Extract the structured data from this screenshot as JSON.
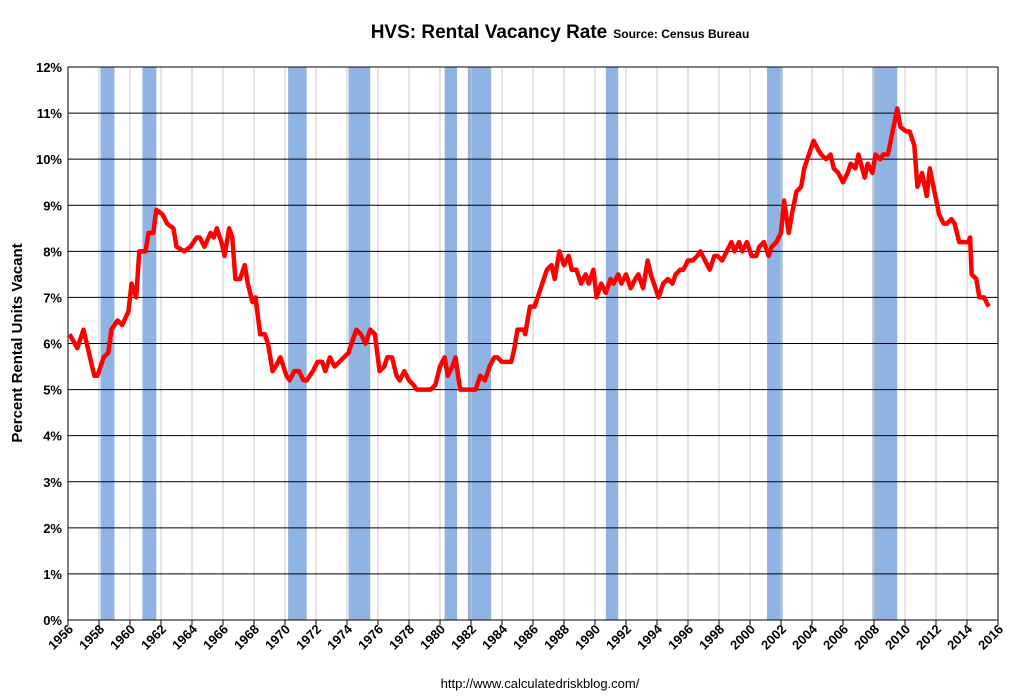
{
  "chart_data": {
    "type": "line",
    "title": "HVS: Rental Vacancy Rate",
    "subtitle": "Source: Census Bureau",
    "ylabel": "Percent Rental Units Vacant",
    "source_url": "http://www.calculatedriskblog.com/",
    "xlim": [
      1956,
      2016
    ],
    "xticks": [
      1956,
      1958,
      1960,
      1962,
      1964,
      1966,
      1968,
      1970,
      1972,
      1974,
      1976,
      1978,
      1980,
      1982,
      1984,
      1986,
      1988,
      1990,
      1992,
      1994,
      1996,
      1998,
      2000,
      2002,
      2004,
      2006,
      2008,
      2010,
      2012,
      2014,
      2016
    ],
    "ylim": [
      0,
      12
    ],
    "yticks": [
      {
        "value": 0,
        "label": "0%"
      },
      {
        "value": 1,
        "label": "1%"
      },
      {
        "value": 2,
        "label": "2%"
      },
      {
        "value": 3,
        "label": "3%"
      },
      {
        "value": 4,
        "label": "4%"
      },
      {
        "value": 5,
        "label": "5%"
      },
      {
        "value": 6,
        "label": "6%"
      },
      {
        "value": 7,
        "label": "7%"
      },
      {
        "value": 8,
        "label": "8%"
      },
      {
        "value": 9,
        "label": "9%"
      },
      {
        "value": 10,
        "label": "10%"
      },
      {
        "value": 11,
        "label": "11%"
      },
      {
        "value": 12,
        "label": "12%"
      }
    ],
    "grid": true,
    "recession_color": "#8fb4e3",
    "recessions": [
      [
        1958.1,
        1959.0
      ],
      [
        1960.8,
        1961.7
      ],
      [
        1970.2,
        1971.4
      ],
      [
        1974.1,
        1975.5
      ],
      [
        1980.3,
        1981.1
      ],
      [
        1981.8,
        1983.3
      ],
      [
        1990.7,
        1991.5
      ],
      [
        2001.1,
        2002.1
      ],
      [
        2007.9,
        2009.5
      ]
    ],
    "x": [
      1956.1,
      1956.6,
      1957.0,
      1957.7,
      1957.9,
      1958.3,
      1958.6,
      1958.8,
      1959.2,
      1959.5,
      1959.9,
      1960.1,
      1960.4,
      1960.6,
      1961.0,
      1961.2,
      1961.5,
      1961.7,
      1962.1,
      1962.4,
      1962.8,
      1963.0,
      1963.5,
      1963.9,
      1964.3,
      1964.5,
      1964.8,
      1965.2,
      1965.4,
      1965.6,
      1965.9,
      1966.1,
      1966.4,
      1966.6,
      1966.8,
      1967.1,
      1967.4,
      1967.6,
      1967.9,
      1968.1,
      1968.4,
      1968.7,
      1968.9,
      1969.2,
      1969.4,
      1969.7,
      1970.1,
      1970.3,
      1970.6,
      1970.9,
      1971.2,
      1971.4,
      1971.8,
      1972.1,
      1972.4,
      1972.6,
      1972.9,
      1973.2,
      1973.5,
      1973.8,
      1974.1,
      1974.4,
      1974.6,
      1974.9,
      1975.2,
      1975.5,
      1975.8,
      1976.1,
      1976.4,
      1976.6,
      1976.9,
      1977.2,
      1977.4,
      1977.7,
      1978.0,
      1978.3,
      1978.5,
      1978.8,
      1979.1,
      1979.4,
      1979.7,
      1980.0,
      1980.3,
      1980.5,
      1980.8,
      1981.0,
      1981.3,
      1981.6,
      1981.9,
      1982.3,
      1982.6,
      1982.9,
      1983.2,
      1983.5,
      1983.7,
      1984.0,
      1984.3,
      1984.6,
      1984.8,
      1985.0,
      1985.4,
      1985.5,
      1985.8,
      1986.1,
      1986.3,
      1986.6,
      1986.9,
      1987.2,
      1987.4,
      1987.7,
      1988.0,
      1988.3,
      1988.5,
      1988.8,
      1989.1,
      1989.4,
      1989.6,
      1989.9,
      1990.1,
      1990.4,
      1990.7,
      1991.0,
      1991.2,
      1991.5,
      1991.7,
      1992.0,
      1992.3,
      1992.6,
      1992.8,
      1993.1,
      1993.4,
      1993.6,
      1993.9,
      1994.1,
      1994.4,
      1994.7,
      1995.0,
      1995.2,
      1995.5,
      1995.7,
      1996.0,
      1996.3,
      1996.6,
      1996.8,
      1997.1,
      1997.4,
      1997.7,
      1997.9,
      1998.2,
      1998.5,
      1998.8,
      1999.0,
      1999.3,
      1999.5,
      1999.8,
      2000.1,
      2000.4,
      2000.6,
      2000.9,
      2001.2,
      2001.4,
      2001.7,
      2002.0,
      2002.2,
      2002.5,
      2002.7,
      2003.0,
      2003.3,
      2003.5,
      2003.8,
      2004.1,
      2004.4,
      2004.6,
      2004.9,
      2005.2,
      2005.4,
      2005.7,
      2006.0,
      2006.3,
      2006.5,
      2006.8,
      2007.0,
      2007.4,
      2007.6,
      2007.9,
      2008.1,
      2008.4,
      2008.6,
      2008.9,
      2009.2,
      2009.5,
      2009.7,
      2010.1,
      2010.3,
      2010.6,
      2010.8,
      2011.1,
      2011.4,
      2011.6,
      2011.9,
      2012.2,
      2012.5,
      2012.7,
      2013.0,
      2013.2,
      2013.5,
      2013.8,
      2014.1,
      2014.2,
      2014.3,
      2014.6,
      2014.8,
      2015.1,
      2015.4
    ],
    "series": [
      {
        "name": "Rental Vacancy Rate",
        "color": "#ff0000",
        "values": [
          6.2,
          5.9,
          6.3,
          5.3,
          5.3,
          5.7,
          5.8,
          6.3,
          6.5,
          6.4,
          6.7,
          7.3,
          7.0,
          8.0,
          8.0,
          8.4,
          8.4,
          8.9,
          8.8,
          8.6,
          8.5,
          8.1,
          8.0,
          8.1,
          8.3,
          8.3,
          8.1,
          8.4,
          8.3,
          8.5,
          8.2,
          7.9,
          8.5,
          8.3,
          7.4,
          7.4,
          7.7,
          7.3,
          6.9,
          7.0,
          6.2,
          6.2,
          6.0,
          5.4,
          5.5,
          5.7,
          5.3,
          5.2,
          5.4,
          5.4,
          5.2,
          5.2,
          5.4,
          5.6,
          5.6,
          5.4,
          5.7,
          5.5,
          5.6,
          5.7,
          5.8,
          6.1,
          6.3,
          6.2,
          6.0,
          6.3,
          6.2,
          5.4,
          5.5,
          5.7,
          5.7,
          5.3,
          5.2,
          5.4,
          5.2,
          5.1,
          5.0,
          5.0,
          5.0,
          5.0,
          5.1,
          5.5,
          5.7,
          5.3,
          5.5,
          5.7,
          5.0,
          5.0,
          5.0,
          5.0,
          5.3,
          5.2,
          5.5,
          5.7,
          5.7,
          5.6,
          5.6,
          5.6,
          5.9,
          6.3,
          6.3,
          6.2,
          6.8,
          6.8,
          7.0,
          7.3,
          7.6,
          7.7,
          7.4,
          8.0,
          7.7,
          7.9,
          7.6,
          7.6,
          7.3,
          7.5,
          7.3,
          7.6,
          7.0,
          7.3,
          7.1,
          7.4,
          7.3,
          7.5,
          7.3,
          7.5,
          7.2,
          7.4,
          7.5,
          7.2,
          7.8,
          7.5,
          7.2,
          7.0,
          7.3,
          7.4,
          7.3,
          7.5,
          7.6,
          7.6,
          7.8,
          7.8,
          7.9,
          8.0,
          7.8,
          7.6,
          7.9,
          7.9,
          7.8,
          8.0,
          8.2,
          8.0,
          8.2,
          8.0,
          8.2,
          7.9,
          7.9,
          8.1,
          8.2,
          7.9,
          8.1,
          8.2,
          8.4,
          9.1,
          8.4,
          8.8,
          9.3,
          9.4,
          9.8,
          10.1,
          10.4,
          10.2,
          10.1,
          10.0,
          10.1,
          9.8,
          9.7,
          9.5,
          9.7,
          9.9,
          9.8,
          10.1,
          9.6,
          9.9,
          9.7,
          10.1,
          10.0,
          10.1,
          10.1,
          10.6,
          11.1,
          10.7,
          10.6,
          10.6,
          10.3,
          9.4,
          9.7,
          9.2,
          9.8,
          9.3,
          8.8,
          8.6,
          8.6,
          8.7,
          8.6,
          8.2,
          8.2,
          8.2,
          8.3,
          7.5,
          7.4,
          7.0,
          7.0,
          6.8
        ]
      }
    ]
  }
}
